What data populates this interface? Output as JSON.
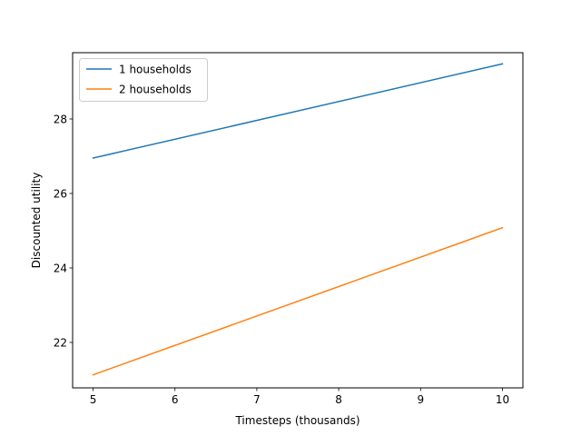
{
  "chart_data": {
    "type": "line",
    "xlabel": "Timesteps (thousands)",
    "ylabel": "Discounted utility",
    "xlim": [
      4.75,
      10.25
    ],
    "ylim": [
      20.78,
      29.78
    ],
    "xticks": [
      5,
      6,
      7,
      8,
      9,
      10
    ],
    "yticks": [
      22,
      24,
      26,
      28
    ],
    "grid": false,
    "legend_position": "top-left",
    "series": [
      {
        "name": "1 households",
        "color": "#1f77b4",
        "x": [
          5,
          10
        ],
        "y": [
          26.95,
          29.48
        ]
      },
      {
        "name": "2 households",
        "color": "#ff7f0e",
        "x": [
          5,
          10
        ],
        "y": [
          21.13,
          25.08
        ]
      }
    ]
  }
}
